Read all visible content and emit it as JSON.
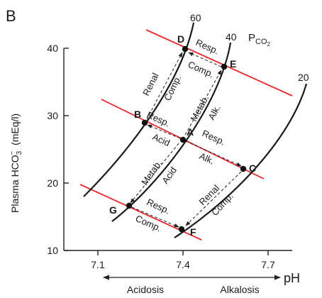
{
  "panel_label": "B",
  "y_axis": {
    "label_main": "Plasma HCO",
    "label_sub": "3",
    "label_sup": "−",
    "label_unit": "(mEq/l)",
    "ticks": [
      "10",
      "20",
      "30",
      "40"
    ]
  },
  "x_axis": {
    "label": "pH",
    "ticks": [
      "7.1",
      "7.4",
      "7.7"
    ],
    "left_caption": "Acidosis",
    "right_caption": "Alkalosis"
  },
  "pco2_legend": {
    "main": "P",
    "sub": "CO",
    "sub2": "2"
  },
  "isobars": [
    {
      "label": "60"
    },
    {
      "label": "40"
    },
    {
      "label": "20"
    }
  ],
  "points": {
    "A": {
      "label": "A",
      "pH": 7.4,
      "hco3": 26
    },
    "B": {
      "label": "B",
      "pH": 7.25,
      "hco3": 29
    },
    "C": {
      "label": "C",
      "pH": 7.62,
      "hco3": 22
    },
    "D": {
      "label": "D",
      "pH": 7.4,
      "hco3": 40
    },
    "E": {
      "label": "E",
      "pH": 7.55,
      "hco3": 37
    },
    "F": {
      "label": "F",
      "pH": 7.4,
      "hco3": 13
    },
    "G": {
      "label": "G",
      "pH": 7.21,
      "hco3": 16.5
    }
  },
  "annotations": {
    "resp_acid_1": "Resp.",
    "resp_acid_2": "Acid",
    "resp_alk_1": "Resp.",
    "resp_alk_2": "Alk.",
    "metab_alk_1": "Metab.",
    "metab_alk_2": "Alk.",
    "metab_acid_1": "Metab.",
    "metab_acid_2": "Acid",
    "renal_comp_1_1": "Renal",
    "renal_comp_1_2": "Comp.",
    "renal_comp_2_1": "Renal",
    "renal_comp_2_2": "Comp.",
    "resp_comp_1_1": "Resp.",
    "resp_comp_1_2": "Comp.",
    "resp_comp_2_1": "Resp.",
    "resp_comp_2_2": "Comp."
  },
  "colors": {
    "buffer_line": "#e8262b",
    "isobar": "#1a1a1a"
  }
}
